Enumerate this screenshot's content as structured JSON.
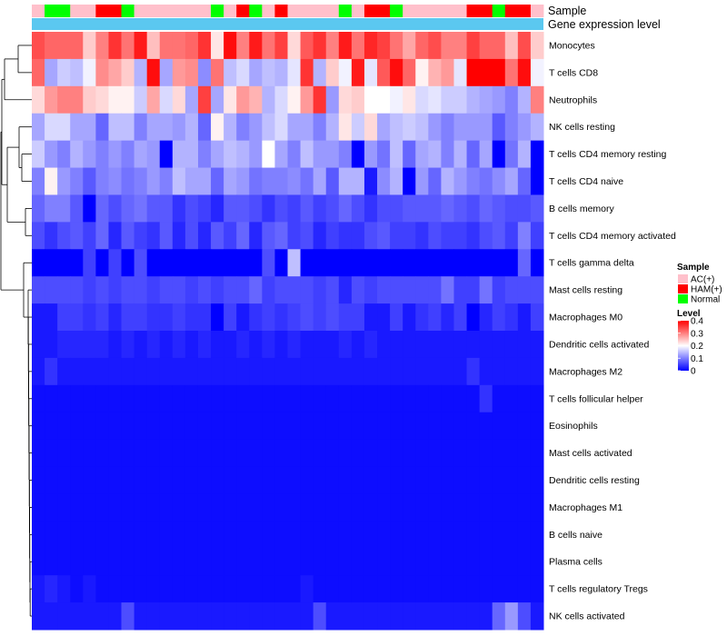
{
  "chart_data": {
    "type": "heatmap",
    "annotation_labels": {
      "sample": "Sample",
      "gene_expression": "Gene expression level"
    },
    "colors": {
      "low": "#0000ff",
      "mid": "#ffffff",
      "high": "#ff0000",
      "ac": "#ffc0cb",
      "ham": "#ff0000",
      "normal": "#00ff00",
      "gene_bar": "#5bc8f0",
      "dendrogram": "#000000"
    },
    "scale": {
      "min": 0,
      "max": 0.4,
      "mid": 0.2
    },
    "sample_legend": {
      "title": "Sample",
      "items": [
        {
          "key": "ac",
          "label": "AC(+)"
        },
        {
          "key": "ham",
          "label": "HAM(+)"
        },
        {
          "key": "normal",
          "label": "Normal"
        }
      ]
    },
    "level_legend": {
      "title": "Level",
      "ticks": [
        "0.4",
        "0.3",
        "0.2",
        "0.1",
        "0"
      ]
    },
    "samples": [
      "ac",
      "normal",
      "normal",
      "ac",
      "ac",
      "ham",
      "ham",
      "normal",
      "ac",
      "ac",
      "ac",
      "ac",
      "ac",
      "ac",
      "normal",
      "ac",
      "ham",
      "normal",
      "ac",
      "ham",
      "ac",
      "ac",
      "ac",
      "ac",
      "normal",
      "ac",
      "ham",
      "ham",
      "normal",
      "ac",
      "ac",
      "ac",
      "ac",
      "ac",
      "ham",
      "ham",
      "normal",
      "ham",
      "ham",
      "ac"
    ],
    "rows": [
      {
        "label": "Monocytes",
        "values": [
          0.34,
          0.32,
          0.32,
          0.32,
          0.24,
          0.3,
          0.36,
          0.31,
          0.38,
          0.25,
          0.31,
          0.31,
          0.32,
          0.36,
          0.22,
          0.39,
          0.3,
          0.38,
          0.31,
          0.35,
          0.23,
          0.33,
          0.36,
          0.3,
          0.38,
          0.31,
          0.37,
          0.35,
          0.31,
          0.27,
          0.32,
          0.34,
          0.3,
          0.3,
          0.35,
          0.32,
          0.32,
          0.25,
          0.34,
          0.24
        ]
      },
      {
        "label": "T cells CD8",
        "values": [
          0.32,
          0.13,
          0.16,
          0.15,
          0.19,
          0.29,
          0.27,
          0.24,
          0.14,
          0.39,
          0.13,
          0.28,
          0.29,
          0.11,
          0.31,
          0.15,
          0.17,
          0.13,
          0.15,
          0.14,
          0.18,
          0.36,
          0.14,
          0.24,
          0.19,
          0.38,
          0.18,
          0.33,
          0.39,
          0.32,
          0.21,
          0.26,
          0.28,
          0.18,
          0.4,
          0.4,
          0.4,
          0.31,
          0.39,
          0.19
        ]
      },
      {
        "label": "Neutrophils",
        "values": [
          0.23,
          0.28,
          0.3,
          0.3,
          0.24,
          0.23,
          0.21,
          0.21,
          0.16,
          0.27,
          0.17,
          0.23,
          0.13,
          0.35,
          0.13,
          0.22,
          0.28,
          0.26,
          0.14,
          0.17,
          0.21,
          0.28,
          0.36,
          0.12,
          0.23,
          0.24,
          0.2,
          0.2,
          0.19,
          0.22,
          0.17,
          0.18,
          0.16,
          0.16,
          0.14,
          0.13,
          0.12,
          0.1,
          0.14,
          0.3
        ]
      },
      {
        "label": "NK cells resting",
        "values": [
          0.13,
          0.17,
          0.17,
          0.13,
          0.13,
          0.08,
          0.15,
          0.15,
          0.1,
          0.13,
          0.13,
          0.12,
          0.14,
          0.08,
          0.21,
          0.14,
          0.1,
          0.12,
          0.15,
          0.17,
          0.13,
          0.13,
          0.1,
          0.14,
          0.22,
          0.16,
          0.23,
          0.13,
          0.15,
          0.16,
          0.15,
          0.12,
          0.1,
          0.12,
          0.12,
          0.12,
          0.07,
          0.1,
          0.12,
          0.14
        ]
      },
      {
        "label": "T cells CD4 memory resting",
        "values": [
          0.16,
          0.12,
          0.1,
          0.14,
          0.12,
          0.1,
          0.12,
          0.1,
          0.13,
          0.12,
          0.0,
          0.14,
          0.14,
          0.1,
          0.13,
          0.15,
          0.14,
          0.12,
          0.2,
          0.13,
          0.1,
          0.15,
          0.12,
          0.12,
          0.1,
          0.0,
          0.12,
          0.09,
          0.15,
          0.08,
          0.13,
          0.14,
          0.1,
          0.14,
          0.08,
          0.13,
          0.0,
          0.09,
          0.14,
          0.0
        ]
      },
      {
        "label": "T cells CD4 naive",
        "values": [
          0.1,
          0.21,
          0.12,
          0.1,
          0.07,
          0.1,
          0.11,
          0.09,
          0.1,
          0.12,
          0.1,
          0.15,
          0.13,
          0.13,
          0.08,
          0.13,
          0.12,
          0.09,
          0.1,
          0.1,
          0.11,
          0.09,
          0.13,
          0.07,
          0.14,
          0.14,
          0.02,
          0.11,
          0.14,
          0.0,
          0.12,
          0.08,
          0.14,
          0.12,
          0.1,
          0.09,
          0.11,
          0.13,
          0.08,
          0.0
        ]
      },
      {
        "label": "B cells memory",
        "values": [
          0.08,
          0.1,
          0.1,
          0.07,
          0.0,
          0.08,
          0.06,
          0.08,
          0.09,
          0.07,
          0.07,
          0.04,
          0.06,
          0.05,
          0.03,
          0.07,
          0.07,
          0.06,
          0.04,
          0.06,
          0.05,
          0.07,
          0.05,
          0.06,
          0.08,
          0.06,
          0.04,
          0.06,
          0.06,
          0.07,
          0.07,
          0.07,
          0.08,
          0.07,
          0.06,
          0.08,
          0.07,
          0.06,
          0.06,
          0.07
        ]
      },
      {
        "label": "T cells CD4 memory activated",
        "values": [
          0.06,
          0.04,
          0.06,
          0.07,
          0.05,
          0.08,
          0.03,
          0.07,
          0.05,
          0.04,
          0.07,
          0.03,
          0.06,
          0.03,
          0.07,
          0.05,
          0.08,
          0.03,
          0.07,
          0.08,
          0.05,
          0.06,
          0.03,
          0.05,
          0.04,
          0.04,
          0.06,
          0.07,
          0.05,
          0.05,
          0.04,
          0.06,
          0.05,
          0.05,
          0.04,
          0.06,
          0.07,
          0.05,
          0.1,
          0.05
        ]
      },
      {
        "label": "T cells gamma delta",
        "values": [
          0.0,
          0.0,
          0.0,
          0.0,
          0.05,
          0.0,
          0.05,
          0.0,
          0.06,
          0.0,
          0.0,
          0.0,
          0.0,
          0.0,
          0.0,
          0.0,
          0.0,
          0.0,
          0.06,
          0.0,
          0.15,
          0.0,
          0.0,
          0.0,
          0.0,
          0.0,
          0.0,
          0.0,
          0.0,
          0.0,
          0.0,
          0.0,
          0.0,
          0.0,
          0.0,
          0.0,
          0.0,
          0.0,
          0.08,
          0.0
        ]
      },
      {
        "label": "Mast cells resting",
        "values": [
          0.06,
          0.06,
          0.06,
          0.06,
          0.05,
          0.06,
          0.05,
          0.06,
          0.06,
          0.05,
          0.06,
          0.06,
          0.05,
          0.06,
          0.05,
          0.06,
          0.06,
          0.08,
          0.05,
          0.06,
          0.06,
          0.06,
          0.05,
          0.06,
          0.03,
          0.06,
          0.05,
          0.06,
          0.06,
          0.06,
          0.06,
          0.06,
          0.09,
          0.05,
          0.05,
          0.09,
          0.05,
          0.06,
          0.06,
          0.06
        ]
      },
      {
        "label": "Macrophages M0",
        "values": [
          0.02,
          0.02,
          0.05,
          0.05,
          0.04,
          0.05,
          0.03,
          0.05,
          0.05,
          0.04,
          0.04,
          0.05,
          0.04,
          0.04,
          0.0,
          0.05,
          0.02,
          0.04,
          0.05,
          0.04,
          0.05,
          0.06,
          0.05,
          0.06,
          0.05,
          0.05,
          0.02,
          0.02,
          0.05,
          0.02,
          0.04,
          0.05,
          0.03,
          0.05,
          0.0,
          0.03,
          0.05,
          0.04,
          0.02,
          0.05
        ]
      },
      {
        "label": "Dendritic cells activated",
        "values": [
          0.02,
          0.02,
          0.03,
          0.03,
          0.03,
          0.03,
          0.02,
          0.03,
          0.02,
          0.03,
          0.02,
          0.03,
          0.02,
          0.03,
          0.02,
          0.02,
          0.03,
          0.02,
          0.03,
          0.02,
          0.03,
          0.02,
          0.02,
          0.02,
          0.03,
          0.02,
          0.03,
          0.02,
          0.02,
          0.02,
          0.02,
          0.02,
          0.02,
          0.02,
          0.02,
          0.02,
          0.02,
          0.02,
          0.02,
          0.02
        ]
      },
      {
        "label": "Macrophages M2",
        "values": [
          0.02,
          0.04,
          0.02,
          0.02,
          0.02,
          0.02,
          0.02,
          0.02,
          0.02,
          0.02,
          0.02,
          0.02,
          0.02,
          0.02,
          0.02,
          0.02,
          0.02,
          0.02,
          0.02,
          0.02,
          0.02,
          0.02,
          0.02,
          0.02,
          0.02,
          0.02,
          0.02,
          0.02,
          0.02,
          0.02,
          0.02,
          0.02,
          0.02,
          0.02,
          0.04,
          0.02,
          0.02,
          0.02,
          0.02,
          0.02
        ]
      },
      {
        "label": "T cells follicular helper",
        "values": [
          0.01,
          0.01,
          0.01,
          0.01,
          0.01,
          0.01,
          0.01,
          0.01,
          0.01,
          0.01,
          0.01,
          0.01,
          0.01,
          0.01,
          0.01,
          0.01,
          0.01,
          0.01,
          0.01,
          0.01,
          0.01,
          0.01,
          0.01,
          0.01,
          0.01,
          0.01,
          0.01,
          0.01,
          0.01,
          0.01,
          0.01,
          0.01,
          0.01,
          0.01,
          0.01,
          0.04,
          0.01,
          0.01,
          0.01,
          0.01
        ]
      },
      {
        "label": "Eosinophils",
        "values": [
          0.01,
          0.01,
          0.01,
          0.01,
          0.01,
          0.01,
          0.01,
          0.01,
          0.01,
          0.01,
          0.01,
          0.01,
          0.01,
          0.01,
          0.01,
          0.01,
          0.01,
          0.01,
          0.01,
          0.01,
          0.01,
          0.01,
          0.01,
          0.01,
          0.01,
          0.01,
          0.01,
          0.01,
          0.01,
          0.01,
          0.01,
          0.01,
          0.01,
          0.01,
          0.01,
          0.01,
          0.01,
          0.01,
          0.01,
          0.01
        ]
      },
      {
        "label": "Mast cells activated",
        "values": [
          0.01,
          0.01,
          0.01,
          0.01,
          0.01,
          0.01,
          0.01,
          0.01,
          0.01,
          0.01,
          0.01,
          0.01,
          0.01,
          0.01,
          0.01,
          0.01,
          0.01,
          0.01,
          0.01,
          0.01,
          0.01,
          0.01,
          0.01,
          0.01,
          0.01,
          0.01,
          0.01,
          0.01,
          0.01,
          0.01,
          0.01,
          0.01,
          0.01,
          0.01,
          0.01,
          0.01,
          0.01,
          0.01,
          0.01,
          0.01
        ]
      },
      {
        "label": "Dendritic cells resting",
        "values": [
          0.01,
          0.01,
          0.01,
          0.01,
          0.01,
          0.01,
          0.01,
          0.01,
          0.01,
          0.01,
          0.01,
          0.01,
          0.01,
          0.01,
          0.01,
          0.01,
          0.01,
          0.01,
          0.01,
          0.01,
          0.01,
          0.01,
          0.01,
          0.01,
          0.01,
          0.01,
          0.01,
          0.01,
          0.01,
          0.01,
          0.01,
          0.01,
          0.01,
          0.01,
          0.01,
          0.01,
          0.01,
          0.01,
          0.01,
          0.01
        ]
      },
      {
        "label": "Macrophages M1",
        "values": [
          0.01,
          0.01,
          0.01,
          0.01,
          0.01,
          0.01,
          0.01,
          0.01,
          0.01,
          0.01,
          0.01,
          0.01,
          0.01,
          0.01,
          0.01,
          0.01,
          0.01,
          0.01,
          0.01,
          0.01,
          0.01,
          0.01,
          0.01,
          0.01,
          0.01,
          0.01,
          0.01,
          0.01,
          0.01,
          0.01,
          0.01,
          0.01,
          0.01,
          0.01,
          0.01,
          0.01,
          0.01,
          0.01,
          0.01,
          0.01
        ]
      },
      {
        "label": "B cells naive",
        "values": [
          0.01,
          0.01,
          0.01,
          0.01,
          0.01,
          0.01,
          0.01,
          0.01,
          0.01,
          0.01,
          0.01,
          0.01,
          0.01,
          0.01,
          0.01,
          0.01,
          0.01,
          0.01,
          0.01,
          0.01,
          0.01,
          0.01,
          0.01,
          0.01,
          0.01,
          0.01,
          0.01,
          0.01,
          0.01,
          0.01,
          0.01,
          0.01,
          0.01,
          0.01,
          0.01,
          0.01,
          0.01,
          0.01,
          0.01,
          0.01
        ]
      },
      {
        "label": "Plasma cells",
        "values": [
          0.01,
          0.01,
          0.01,
          0.01,
          0.01,
          0.01,
          0.01,
          0.01,
          0.01,
          0.01,
          0.01,
          0.01,
          0.01,
          0.01,
          0.01,
          0.01,
          0.01,
          0.01,
          0.01,
          0.01,
          0.01,
          0.01,
          0.01,
          0.01,
          0.01,
          0.01,
          0.01,
          0.01,
          0.01,
          0.01,
          0.01,
          0.01,
          0.01,
          0.01,
          0.01,
          0.01,
          0.01,
          0.01,
          0.01,
          0.01
        ]
      },
      {
        "label": "T cells regulatory  Tregs",
        "values": [
          0.02,
          0.03,
          0.02,
          0.01,
          0.02,
          0.01,
          0.01,
          0.01,
          0.01,
          0.01,
          0.01,
          0.01,
          0.01,
          0.01,
          0.01,
          0.01,
          0.01,
          0.01,
          0.01,
          0.01,
          0.01,
          0.02,
          0.01,
          0.01,
          0.01,
          0.01,
          0.01,
          0.01,
          0.01,
          0.01,
          0.01,
          0.01,
          0.01,
          0.01,
          0.01,
          0.01,
          0.01,
          0.01,
          0.01,
          0.01
        ]
      },
      {
        "label": "NK cells activated",
        "values": [
          0.02,
          0.02,
          0.02,
          0.02,
          0.02,
          0.02,
          0.02,
          0.06,
          0.02,
          0.02,
          0.02,
          0.02,
          0.02,
          0.02,
          0.02,
          0.02,
          0.02,
          0.02,
          0.02,
          0.02,
          0.02,
          0.02,
          0.06,
          0.02,
          0.02,
          0.02,
          0.02,
          0.02,
          0.02,
          0.02,
          0.02,
          0.02,
          0.02,
          0.02,
          0.02,
          0.02,
          0.08,
          0.12,
          0.06,
          0.02
        ]
      }
    ]
  }
}
